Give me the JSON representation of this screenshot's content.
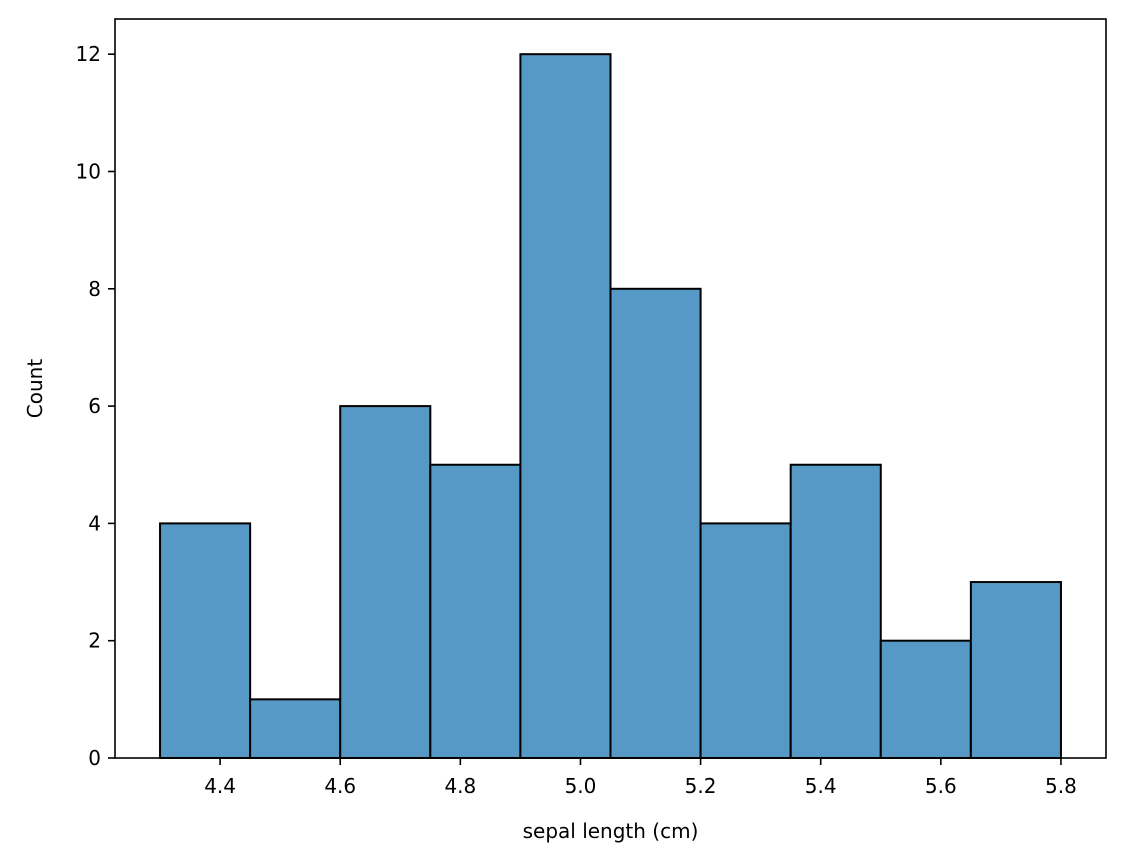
{
  "chart_data": {
    "type": "histogram",
    "bin_edges": [
      4.3,
      4.45,
      4.6,
      4.75,
      4.9,
      5.05,
      5.2,
      5.35,
      5.5,
      5.65,
      5.8
    ],
    "counts": [
      4,
      1,
      6,
      5,
      12,
      8,
      4,
      5,
      2,
      3
    ],
    "xlabel": "sepal length (cm)",
    "ylabel": "Count",
    "xlim": [
      4.225,
      5.875
    ],
    "ylim": [
      0,
      12.6
    ],
    "xticks": [
      4.4,
      4.6,
      4.8,
      5.0,
      5.2,
      5.4,
      5.6,
      5.8
    ],
    "xtick_labels": [
      "4.4",
      "4.6",
      "4.8",
      "5.0",
      "5.2",
      "5.4",
      "5.6",
      "5.8"
    ],
    "yticks": [
      0,
      2,
      4,
      6,
      8,
      10,
      12
    ],
    "ytick_labels": [
      "0",
      "2",
      "4",
      "6",
      "8",
      "10",
      "12"
    ],
    "bar_color": "#5799c6",
    "edge_color": "#000000",
    "grid": false
  }
}
